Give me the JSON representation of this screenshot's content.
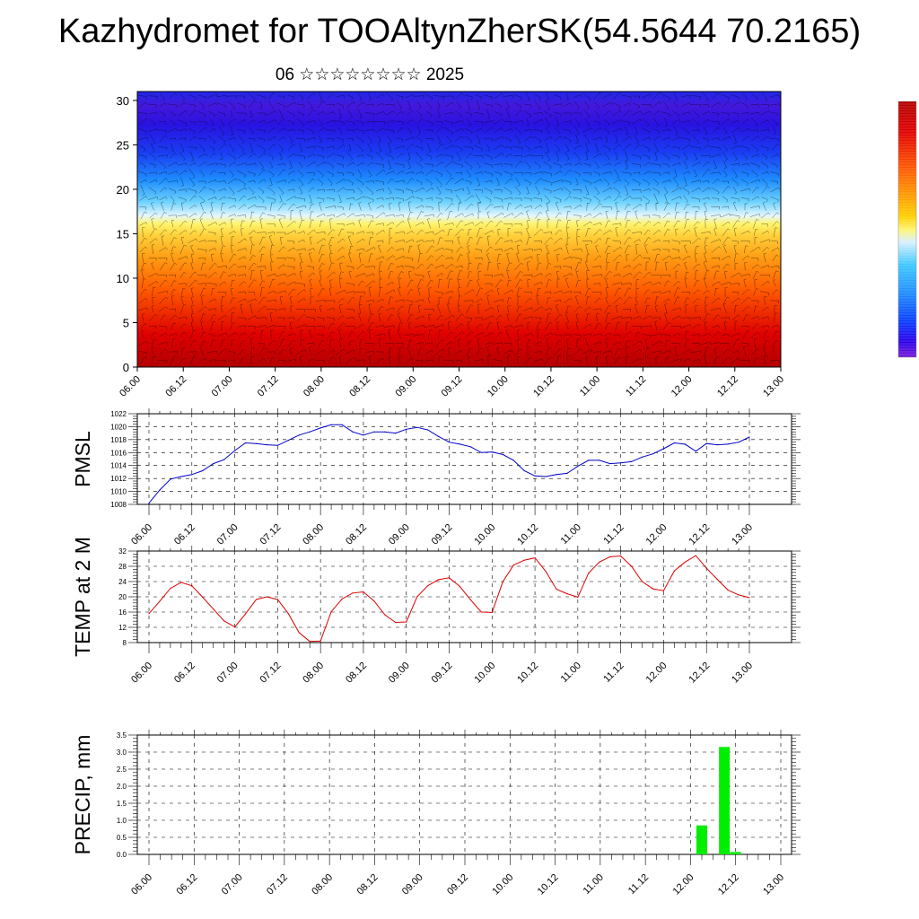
{
  "header": {
    "title": "Kazhydromet for TOOAltynZherSK(54.5644 70.2165)",
    "subtitle": "06 ☆☆☆☆☆☆☆☆ 2025"
  },
  "chart_data": [
    {
      "type": "heatmap",
      "title": "",
      "ylim": [
        0,
        31
      ],
      "yticks": [
        "0",
        "5",
        "10",
        "15",
        "20",
        "25",
        "30"
      ],
      "xticks": [
        "06.00",
        "06.12",
        "07.00",
        "07.12",
        "08.00",
        "08.12",
        "09.00",
        "09.12",
        "10.00",
        "10.12",
        "11.00",
        "11.12",
        "12.00",
        "12.12",
        "13.00"
      ],
      "colormap": [
        "#7a1bd8",
        "#2a00e8",
        "#0a3cff",
        "#1e8cff",
        "#3cc8ff",
        "#d8f0ff",
        "#fff24a",
        "#ffc800",
        "#ff8c00",
        "#ff3c00",
        "#e00000",
        "#b40000"
      ],
      "overlay": "wind barbs",
      "colorbar": "unlabeled",
      "colors": {
        "cold": "#2a00e8",
        "warm": "#e00000"
      }
    },
    {
      "type": "line",
      "ylabel": "PMSL",
      "ylim": [
        1008,
        1022
      ],
      "yticks": [
        "1008",
        "1010",
        "1012",
        "1014",
        "1016",
        "1018",
        "1020",
        "1022"
      ],
      "xticks": [
        "06.00",
        "06.12",
        "07.00",
        "07.12",
        "08.00",
        "08.12",
        "09.00",
        "09.12",
        "10.00",
        "10.12",
        "11.00",
        "11.12",
        "12.00",
        "12.12",
        "13.00"
      ],
      "x_hours": [
        0,
        3,
        6,
        9,
        12,
        15,
        18,
        21,
        24,
        27,
        30,
        33,
        36,
        39,
        42,
        45,
        48,
        51,
        54,
        57,
        60,
        63,
        66,
        69,
        72,
        75,
        78,
        81,
        84,
        87,
        90,
        93,
        96,
        99,
        102,
        105,
        108,
        111,
        114,
        117,
        120,
        123,
        126,
        129,
        132,
        135,
        138,
        141,
        144,
        147,
        150,
        153,
        156,
        159,
        162,
        165,
        168
      ],
      "values": [
        1008.2,
        1010.2,
        1011.9,
        1012.3,
        1012.6,
        1013.2,
        1014.3,
        1014.9,
        1016.3,
        1017.5,
        1017.4,
        1017.2,
        1017.1,
        1017.9,
        1018.7,
        1019.2,
        1019.8,
        1020.3,
        1020.3,
        1019.2,
        1018.7,
        1019.2,
        1019.2,
        1019.0,
        1019.6,
        1019.9,
        1019.5,
        1018.5,
        1017.6,
        1017.3,
        1016.9,
        1016.0,
        1016.1,
        1015.7,
        1014.8,
        1013.2,
        1012.4,
        1012.3,
        1012.6,
        1012.8,
        1013.9,
        1014.8,
        1014.8,
        1014.3,
        1014.4,
        1014.6,
        1015.3,
        1015.8,
        1016.6,
        1017.5,
        1017.3,
        1016.2,
        1017.4,
        1017.2,
        1017.3,
        1017.6,
        1018.4
      ],
      "color": "#0000cc"
    },
    {
      "type": "line",
      "ylabel": "TEMP at 2 M",
      "ylim": [
        8,
        32
      ],
      "yticks": [
        "8",
        "12",
        "16",
        "20",
        "24",
        "28",
        "32"
      ],
      "xticks": [
        "06.00",
        "06.12",
        "07.00",
        "07.12",
        "08.00",
        "08.12",
        "09.00",
        "09.12",
        "10.00",
        "10.12",
        "11.00",
        "11.12",
        "12.00",
        "12.12",
        "13.00"
      ],
      "x_hours": [
        0,
        3,
        6,
        9,
        12,
        15,
        18,
        21,
        24,
        27,
        30,
        33,
        36,
        39,
        42,
        45,
        48,
        51,
        54,
        57,
        60,
        63,
        66,
        69,
        72,
        75,
        78,
        81,
        84,
        87,
        90,
        93,
        96,
        99,
        102,
        105,
        108,
        111,
        114,
        117,
        120,
        123,
        126,
        129,
        132,
        135,
        138,
        141,
        144,
        147,
        150,
        153,
        156,
        159,
        162,
        165,
        168
      ],
      "values": [
        15.6,
        18.8,
        22.2,
        23.8,
        22.9,
        19.9,
        16.8,
        13.7,
        12.1,
        15.5,
        19.3,
        20.0,
        19.3,
        15.6,
        10.6,
        8.3,
        8.4,
        16.1,
        19.4,
        21.0,
        21.3,
        18.9,
        15.3,
        13.3,
        13.4,
        20.0,
        22.9,
        24.5,
        25.0,
        22.7,
        19.2,
        16.0,
        15.9,
        23.9,
        28.3,
        29.6,
        30.2,
        26.7,
        22.0,
        20.8,
        19.9,
        26.2,
        29.1,
        30.5,
        30.7,
        28.0,
        24.0,
        22.1,
        21.6,
        26.8,
        29.1,
        30.8,
        27.5,
        24.6,
        21.8,
        20.5,
        19.8
      ],
      "color": "#dd0000"
    },
    {
      "type": "bar",
      "ylabel": "PRECIP, mm",
      "ylim": [
        0,
        3.5
      ],
      "yticks": [
        "0.0",
        "0.5",
        "1.0",
        "1.5",
        "2.0",
        "2.5",
        "3.0",
        "3.5"
      ],
      "xticks": [
        "06.00",
        "06.12",
        "07.00",
        "07.12",
        "08.00",
        "08.12",
        "09.00",
        "09.12",
        "10.00",
        "10.12",
        "11.00",
        "11.12",
        "12.00",
        "12.12",
        "13.00"
      ],
      "bars": [
        {
          "x_hours": 147,
          "value": 0.85
        },
        {
          "x_hours": 153,
          "value": 3.15
        },
        {
          "x_hours": 156,
          "value": 0.07
        }
      ],
      "color": "#00ee00"
    }
  ]
}
